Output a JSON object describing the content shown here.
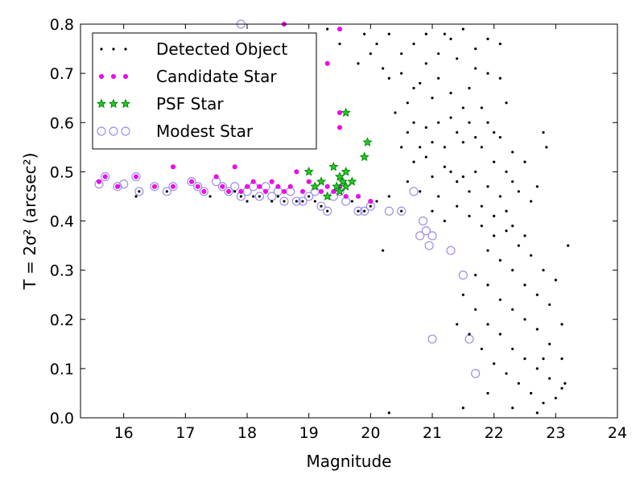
{
  "chart_data": {
    "type": "scatter",
    "title": "",
    "xlabel": "Magnitude",
    "ylabel": "T = 2σ² (arcsec²)",
    "xlim": [
      15.3,
      24
    ],
    "ylim": [
      0.0,
      0.8
    ],
    "xticks": [
      16,
      17,
      18,
      19,
      20,
      21,
      22,
      23,
      24
    ],
    "yticks": [
      0.0,
      0.1,
      0.2,
      0.3,
      0.4,
      0.5,
      0.6,
      0.7,
      0.8
    ],
    "xtick_labels": [
      "16",
      "17",
      "18",
      "19",
      "20",
      "21",
      "22",
      "23",
      "24"
    ],
    "ytick_labels": [
      "0.0",
      "0.1",
      "0.2",
      "0.3",
      "0.4",
      "0.5",
      "0.6",
      "0.7",
      "0.8"
    ],
    "grid": false,
    "legend_position": "top-left",
    "legend": [
      {
        "label": "Detected Object",
        "color": "#000000",
        "marker": "dot"
      },
      {
        "label": "Candidate Star",
        "color": "#ff00ff",
        "marker": "small-circle"
      },
      {
        "label": "PSF Star",
        "color": "#008000",
        "marker": "star"
      },
      {
        "label": "Modest Star",
        "color": "#9a8fe8",
        "marker": "open-circle"
      }
    ],
    "series": [
      {
        "name": "Detected Object",
        "color": "#000000",
        "marker": "dot",
        "points": [
          [
            16.2,
            0.45
          ],
          [
            16.25,
            0.46
          ],
          [
            16.7,
            0.46
          ],
          [
            17.4,
            0.45
          ],
          [
            17.8,
            0.46
          ],
          [
            17.9,
            0.45
          ],
          [
            18.0,
            0.44
          ],
          [
            18.1,
            0.45
          ],
          [
            18.2,
            0.45
          ],
          [
            18.4,
            0.44
          ],
          [
            18.5,
            0.45
          ],
          [
            18.6,
            0.44
          ],
          [
            18.8,
            0.44
          ],
          [
            18.9,
            0.44
          ],
          [
            19.0,
            0.45
          ],
          [
            19.1,
            0.44
          ],
          [
            19.2,
            0.43
          ],
          [
            19.3,
            0.42
          ],
          [
            19.5,
            0.46
          ],
          [
            19.6,
            0.45
          ],
          [
            19.7,
            0.44
          ],
          [
            19.8,
            0.42
          ],
          [
            19.9,
            0.42
          ],
          [
            20.0,
            0.43
          ],
          [
            20.1,
            0.44
          ],
          [
            20.3,
            0.45
          ],
          [
            20.5,
            0.42
          ],
          [
            20.2,
            0.34
          ],
          [
            20.3,
            0.01
          ],
          [
            19.3,
            0.79
          ],
          [
            19.5,
            0.76
          ],
          [
            19.8,
            0.72
          ],
          [
            19.9,
            0.78
          ],
          [
            20.0,
            0.74
          ],
          [
            20.1,
            0.76
          ],
          [
            20.2,
            0.71
          ],
          [
            20.3,
            0.78
          ],
          [
            20.4,
            0.62
          ],
          [
            20.5,
            0.74
          ],
          [
            20.6,
            0.58
          ],
          [
            20.7,
            0.67
          ],
          [
            20.8,
            0.55
          ],
          [
            20.9,
            0.72
          ],
          [
            21.0,
            0.65
          ],
          [
            21.1,
            0.69
          ],
          [
            21.2,
            0.78
          ],
          [
            21.3,
            0.61
          ],
          [
            21.4,
            0.73
          ],
          [
            21.5,
            0.56
          ],
          [
            21.6,
            0.67
          ],
          [
            21.7,
            0.75
          ],
          [
            21.8,
            0.63
          ],
          [
            21.9,
            0.7
          ],
          [
            22.0,
            0.58
          ],
          [
            22.1,
            0.76
          ],
          [
            22.2,
            0.64
          ],
          [
            22.3,
            0.54
          ],
          [
            20.6,
            0.48
          ],
          [
            20.7,
            0.52
          ],
          [
            20.8,
            0.46
          ],
          [
            20.9,
            0.53
          ],
          [
            21.0,
            0.49
          ],
          [
            21.1,
            0.45
          ],
          [
            21.2,
            0.51
          ],
          [
            21.3,
            0.5
          ],
          [
            21.4,
            0.48
          ],
          [
            21.5,
            0.49
          ],
          [
            21.6,
            0.46
          ],
          [
            21.7,
            0.5
          ],
          [
            21.8,
            0.43
          ],
          [
            21.9,
            0.47
          ],
          [
            22.0,
            0.41
          ],
          [
            22.1,
            0.45
          ],
          [
            22.2,
            0.42
          ],
          [
            22.3,
            0.39
          ],
          [
            22.4,
            0.46
          ],
          [
            22.5,
            0.37
          ],
          [
            22.6,
            0.44
          ],
          [
            20.5,
            0.55
          ],
          [
            20.6,
            0.64
          ],
          [
            20.7,
            0.6
          ],
          [
            20.8,
            0.68
          ],
          [
            20.9,
            0.59
          ],
          [
            21.0,
            0.56
          ],
          [
            21.1,
            0.6
          ],
          [
            21.2,
            0.55
          ],
          [
            21.3,
            0.66
          ],
          [
            21.4,
            0.58
          ],
          [
            21.5,
            0.63
          ],
          [
            21.6,
            0.6
          ],
          [
            21.7,
            0.57
          ],
          [
            21.8,
            0.55
          ],
          [
            21.9,
            0.6
          ],
          [
            22.0,
            0.52
          ],
          [
            22.1,
            0.57
          ],
          [
            22.2,
            0.5
          ],
          [
            22.3,
            0.48
          ],
          [
            22.5,
            0.52
          ],
          [
            22.7,
            0.47
          ],
          [
            22.8,
            0.58
          ],
          [
            22.85,
            0.55
          ],
          [
            20.3,
            0.69
          ],
          [
            20.5,
            0.7
          ],
          [
            20.7,
            0.76
          ],
          [
            20.9,
            0.78
          ],
          [
            21.1,
            0.74
          ],
          [
            21.3,
            0.77
          ],
          [
            21.5,
            0.79
          ],
          [
            21.7,
            0.71
          ],
          [
            21.9,
            0.77
          ],
          [
            22.1,
            0.69
          ],
          [
            21.0,
            0.42
          ],
          [
            21.2,
            0.4
          ],
          [
            21.4,
            0.43
          ],
          [
            21.6,
            0.41
          ],
          [
            21.8,
            0.39
          ],
          [
            22.0,
            0.37
          ],
          [
            22.2,
            0.38
          ],
          [
            22.4,
            0.35
          ],
          [
            22.6,
            0.33
          ],
          [
            22.8,
            0.3
          ],
          [
            23.0,
            0.28
          ],
          [
            21.9,
            0.34
          ],
          [
            22.1,
            0.32
          ],
          [
            22.3,
            0.3
          ],
          [
            22.5,
            0.27
          ],
          [
            22.7,
            0.25
          ],
          [
            22.9,
            0.23
          ],
          [
            23.1,
            0.19
          ],
          [
            21.7,
            0.29
          ],
          [
            21.9,
            0.27
          ],
          [
            22.1,
            0.24
          ],
          [
            22.3,
            0.22
          ],
          [
            22.5,
            0.2
          ],
          [
            22.7,
            0.18
          ],
          [
            22.9,
            0.15
          ],
          [
            23.1,
            0.12
          ],
          [
            21.5,
            0.25
          ],
          [
            21.7,
            0.22
          ],
          [
            21.9,
            0.19
          ],
          [
            22.1,
            0.17
          ],
          [
            22.3,
            0.14
          ],
          [
            22.5,
            0.12
          ],
          [
            22.7,
            0.1
          ],
          [
            22.9,
            0.08
          ],
          [
            23.1,
            0.06
          ],
          [
            21.6,
            0.17
          ],
          [
            21.8,
            0.14
          ],
          [
            22.0,
            0.11
          ],
          [
            22.2,
            0.09
          ],
          [
            22.4,
            0.07
          ],
          [
            22.6,
            0.05
          ],
          [
            22.8,
            0.03
          ],
          [
            21.5,
            0.02
          ],
          [
            21.9,
            0.05
          ],
          [
            22.3,
            0.02
          ],
          [
            22.7,
            0.01
          ],
          [
            23.0,
            0.04
          ],
          [
            23.2,
            0.35
          ],
          [
            21.4,
            0.19
          ],
          [
            22.8,
            0.12
          ],
          [
            23.15,
            0.07
          ]
        ]
      },
      {
        "name": "Candidate Star",
        "color": "#ff00ff",
        "marker": "small-circle",
        "points": [
          [
            15.6,
            0.48
          ],
          [
            15.7,
            0.49
          ],
          [
            15.9,
            0.47
          ],
          [
            16.2,
            0.49
          ],
          [
            16.5,
            0.47
          ],
          [
            16.8,
            0.47
          ],
          [
            16.8,
            0.51
          ],
          [
            17.1,
            0.48
          ],
          [
            17.2,
            0.47
          ],
          [
            17.3,
            0.46
          ],
          [
            17.5,
            0.49
          ],
          [
            17.6,
            0.47
          ],
          [
            17.7,
            0.46
          ],
          [
            17.8,
            0.51
          ],
          [
            17.9,
            0.46
          ],
          [
            18.0,
            0.47
          ],
          [
            18.1,
            0.48
          ],
          [
            18.2,
            0.47
          ],
          [
            18.3,
            0.46
          ],
          [
            18.4,
            0.48
          ],
          [
            18.5,
            0.47
          ],
          [
            18.6,
            0.46
          ],
          [
            18.7,
            0.47
          ],
          [
            18.8,
            0.5
          ],
          [
            18.9,
            0.46
          ],
          [
            19.0,
            0.48
          ],
          [
            19.1,
            0.47
          ],
          [
            19.2,
            0.46
          ],
          [
            19.3,
            0.47
          ],
          [
            19.4,
            0.46
          ],
          [
            19.5,
            0.47
          ],
          [
            19.6,
            0.45
          ],
          [
            19.8,
            0.45
          ],
          [
            20.0,
            0.44
          ],
          [
            19.5,
            0.59
          ],
          [
            19.5,
            0.62
          ],
          [
            19.5,
            0.79
          ],
          [
            19.3,
            0.72
          ],
          [
            18.6,
            0.8
          ]
        ]
      },
      {
        "name": "PSF Star",
        "color": "#008000",
        "marker": "star",
        "points": [
          [
            19.0,
            0.5
          ],
          [
            19.1,
            0.47
          ],
          [
            19.2,
            0.48
          ],
          [
            19.3,
            0.45
          ],
          [
            19.4,
            0.51
          ],
          [
            19.45,
            0.47
          ],
          [
            19.5,
            0.49
          ],
          [
            19.55,
            0.48
          ],
          [
            19.6,
            0.47
          ],
          [
            19.7,
            0.48
          ],
          [
            19.9,
            0.53
          ],
          [
            19.95,
            0.56
          ],
          [
            19.6,
            0.62
          ],
          [
            19.5,
            0.46
          ],
          [
            19.6,
            0.5
          ]
        ]
      },
      {
        "name": "Modest Star",
        "color": "#9a8fe8",
        "marker": "open-circle",
        "points": [
          [
            15.6,
            0.475
          ],
          [
            15.7,
            0.49
          ],
          [
            15.9,
            0.47
          ],
          [
            16.0,
            0.475
          ],
          [
            16.2,
            0.49
          ],
          [
            16.25,
            0.46
          ],
          [
            16.5,
            0.47
          ],
          [
            16.7,
            0.46
          ],
          [
            16.8,
            0.47
          ],
          [
            17.1,
            0.48
          ],
          [
            17.2,
            0.47
          ],
          [
            17.3,
            0.46
          ],
          [
            17.5,
            0.48
          ],
          [
            17.6,
            0.47
          ],
          [
            17.7,
            0.46
          ],
          [
            17.8,
            0.47
          ],
          [
            17.9,
            0.45
          ],
          [
            18.0,
            0.46
          ],
          [
            18.1,
            0.47
          ],
          [
            18.2,
            0.45
          ],
          [
            18.3,
            0.47
          ],
          [
            18.4,
            0.45
          ],
          [
            18.5,
            0.46
          ],
          [
            18.6,
            0.44
          ],
          [
            18.7,
            0.46
          ],
          [
            18.8,
            0.44
          ],
          [
            18.9,
            0.44
          ],
          [
            19.0,
            0.45
          ],
          [
            19.1,
            0.46
          ],
          [
            19.2,
            0.43
          ],
          [
            19.3,
            0.42
          ],
          [
            19.4,
            0.45
          ],
          [
            19.5,
            0.46
          ],
          [
            19.6,
            0.44
          ],
          [
            19.8,
            0.42
          ],
          [
            19.9,
            0.42
          ],
          [
            20.0,
            0.43
          ],
          [
            20.3,
            0.42
          ],
          [
            20.5,
            0.42
          ],
          [
            20.7,
            0.46
          ],
          [
            20.8,
            0.37
          ],
          [
            20.85,
            0.4
          ],
          [
            20.9,
            0.38
          ],
          [
            20.95,
            0.35
          ],
          [
            21.0,
            0.37
          ],
          [
            21.0,
            0.16
          ],
          [
            21.3,
            0.34
          ],
          [
            21.5,
            0.29
          ],
          [
            21.6,
            0.16
          ],
          [
            21.7,
            0.09
          ],
          [
            17.9,
            0.8
          ]
        ]
      }
    ]
  }
}
